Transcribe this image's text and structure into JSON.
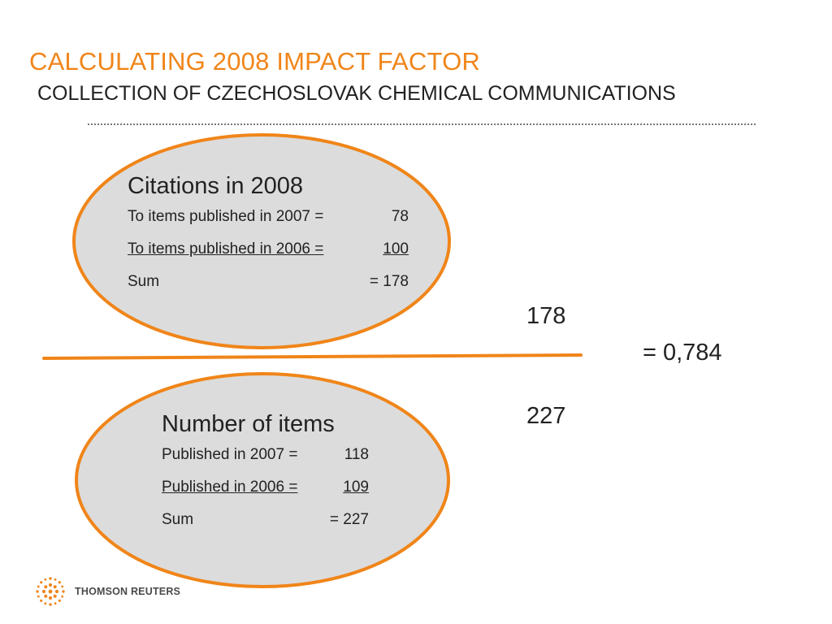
{
  "title": "CALCULATING 2008 IMPACT FACTOR",
  "subtitle": "COLLECTION OF CZECHOSLOVAK CHEMICAL COMMUNICATIONS",
  "numerator": {
    "heading": "Citations in 2008",
    "rows": [
      {
        "label": "To items published in 2007 =",
        "value": "78"
      },
      {
        "label": "To items published in 2006 =",
        "value": "100"
      },
      {
        "label": "Sum",
        "value": "=  178"
      }
    ]
  },
  "denominator": {
    "heading": "Number of items",
    "rows": [
      {
        "label": "Published in 2007 =",
        "value": "118"
      },
      {
        "label": "Published in 2006 =",
        "value": "109"
      },
      {
        "label": "Sum",
        "value": "=    227"
      }
    ]
  },
  "fraction": {
    "numerator": "178",
    "denominator": "227",
    "result": "= 0,784"
  },
  "logo": {
    "text": "THOMSON REUTERS"
  },
  "colors": {
    "accent": "#F08519",
    "ellipse_fill": "#DCDCDC"
  }
}
